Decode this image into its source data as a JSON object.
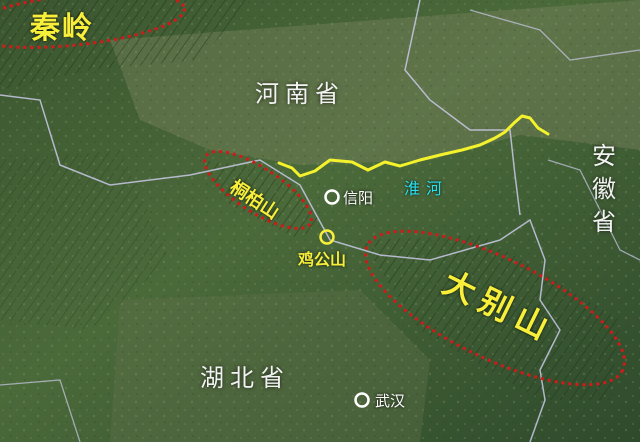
{
  "colors": {
    "province_label": "#f2f2f2",
    "mountain_label": "#f7ef3a",
    "mountain_outline": "#d11a1a",
    "river_line": "#f3f22c",
    "river_label": "#27e1f2",
    "city_marker": "#ffffff",
    "mountain_pass_marker": "#f7ef3a",
    "province_border": "#c9c9e6",
    "terrain_base": "#3a5a34"
  },
  "provinces": {
    "henan": "河南省",
    "anhui": "安徽省",
    "hubei": "湖北省"
  },
  "mountains": {
    "qinling": "秦岭",
    "tongbai": "桐柏山",
    "dabie": "大别山",
    "jigong": "鸡公山"
  },
  "rivers": {
    "huai": "淮河"
  },
  "cities": {
    "xinyang": "信阳",
    "wuhan": "武汉"
  }
}
